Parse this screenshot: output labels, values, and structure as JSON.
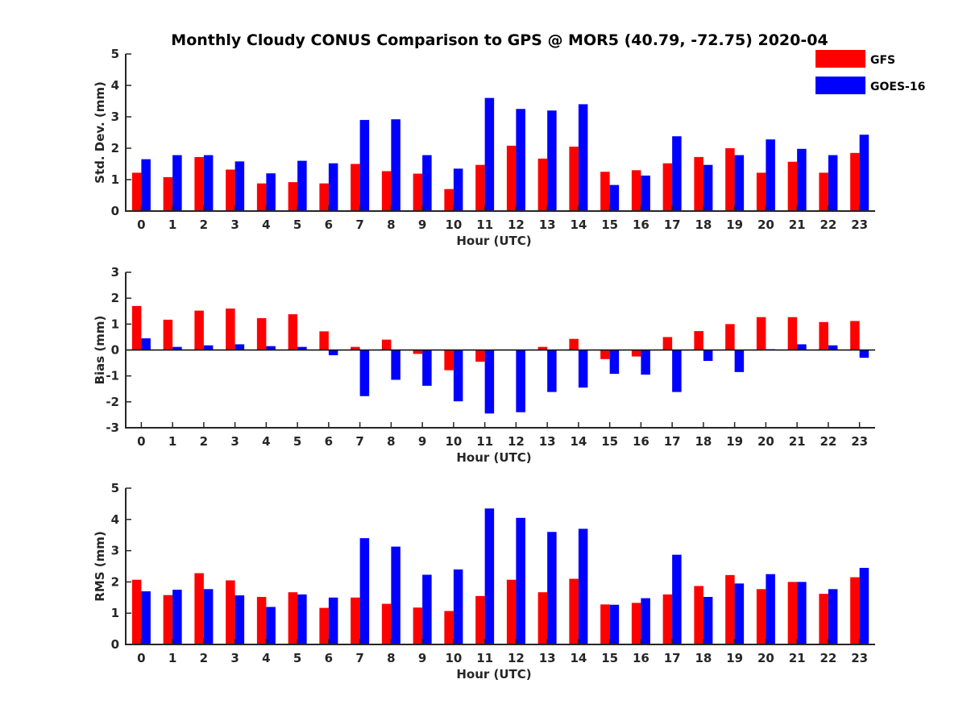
{
  "title": "Monthly Cloudy CONUS Comparison to GPS @ MOR5 (40.79, -72.75) 2020-04",
  "legend": [
    {
      "name": "GFS",
      "color": "#ff0000"
    },
    {
      "name": "GOES-16",
      "color": "#0000ff"
    }
  ],
  "chart_data": [
    {
      "type": "bar",
      "id": "std",
      "xlabel": "Hour (UTC)",
      "ylabel": "Std. Dev. (mm)",
      "ylim": [
        0,
        5
      ],
      "yticks": [
        0,
        1,
        2,
        3,
        4,
        5
      ],
      "categories": [
        "0",
        "1",
        "2",
        "3",
        "4",
        "5",
        "6",
        "7",
        "8",
        "9",
        "10",
        "11",
        "12",
        "13",
        "14",
        "15",
        "16",
        "17",
        "18",
        "19",
        "20",
        "21",
        "22",
        "23"
      ],
      "series": [
        {
          "name": "GFS",
          "color": "#ff0000",
          "values": [
            1.22,
            1.08,
            1.72,
            1.32,
            0.88,
            0.92,
            0.88,
            1.5,
            1.27,
            1.19,
            0.7,
            1.47,
            2.08,
            1.67,
            2.05,
            1.25,
            1.3,
            1.52,
            1.72,
            2.0,
            1.22,
            1.57,
            1.22,
            1.85
          ]
        },
        {
          "name": "GOES-16",
          "color": "#0000ff",
          "values": [
            1.65,
            1.78,
            1.78,
            1.58,
            1.2,
            1.6,
            1.52,
            2.9,
            2.92,
            1.78,
            1.35,
            3.6,
            3.25,
            3.2,
            3.4,
            0.83,
            1.13,
            2.38,
            1.47,
            1.78,
            2.28,
            1.98,
            1.78,
            2.43
          ]
        }
      ]
    },
    {
      "type": "bar",
      "id": "bias",
      "xlabel": "Hour (UTC)",
      "ylabel": "Bias (mm)",
      "ylim": [
        -3,
        3
      ],
      "yticks": [
        -3,
        -2,
        -1,
        0,
        1,
        2,
        3
      ],
      "categories": [
        "0",
        "1",
        "2",
        "3",
        "4",
        "5",
        "6",
        "7",
        "8",
        "9",
        "10",
        "11",
        "12",
        "13",
        "14",
        "15",
        "16",
        "17",
        "18",
        "19",
        "20",
        "21",
        "22",
        "23"
      ],
      "series": [
        {
          "name": "GFS",
          "color": "#ff0000",
          "values": [
            1.7,
            1.17,
            1.52,
            1.6,
            1.23,
            1.38,
            0.72,
            0.12,
            0.4,
            -0.15,
            -0.78,
            -0.45,
            0.0,
            0.12,
            0.43,
            -0.35,
            -0.25,
            0.5,
            0.73,
            1.0,
            1.27,
            1.27,
            1.08,
            1.12
          ]
        },
        {
          "name": "GOES-16",
          "color": "#0000ff",
          "values": [
            0.45,
            0.12,
            0.18,
            0.22,
            0.15,
            0.12,
            -0.2,
            -1.78,
            -1.15,
            -1.38,
            -1.98,
            -2.45,
            -2.4,
            -1.62,
            -1.45,
            -0.92,
            -0.95,
            -1.62,
            -0.42,
            -0.85,
            0.03,
            0.22,
            0.18,
            -0.3
          ]
        }
      ]
    },
    {
      "type": "bar",
      "id": "rms",
      "xlabel": "Hour (UTC)",
      "ylabel": "RMS (mm)",
      "ylim": [
        0,
        5
      ],
      "yticks": [
        0,
        1,
        2,
        3,
        4,
        5
      ],
      "categories": [
        "0",
        "1",
        "2",
        "3",
        "4",
        "5",
        "6",
        "7",
        "8",
        "9",
        "10",
        "11",
        "12",
        "13",
        "14",
        "15",
        "16",
        "17",
        "18",
        "19",
        "20",
        "21",
        "22",
        "23"
      ],
      "series": [
        {
          "name": "GFS",
          "color": "#ff0000",
          "values": [
            2.07,
            1.58,
            2.28,
            2.05,
            1.52,
            1.67,
            1.17,
            1.5,
            1.3,
            1.18,
            1.07,
            1.55,
            2.07,
            1.67,
            2.1,
            1.28,
            1.33,
            1.6,
            1.87,
            2.22,
            1.77,
            2.0,
            1.62,
            2.15
          ]
        },
        {
          "name": "GOES-16",
          "color": "#0000ff",
          "values": [
            1.7,
            1.75,
            1.77,
            1.57,
            1.2,
            1.6,
            1.5,
            3.4,
            3.13,
            2.23,
            2.4,
            4.35,
            4.05,
            3.6,
            3.7,
            1.27,
            1.48,
            2.87,
            1.52,
            1.95,
            2.25,
            2.0,
            1.77,
            2.45
          ]
        }
      ]
    }
  ]
}
